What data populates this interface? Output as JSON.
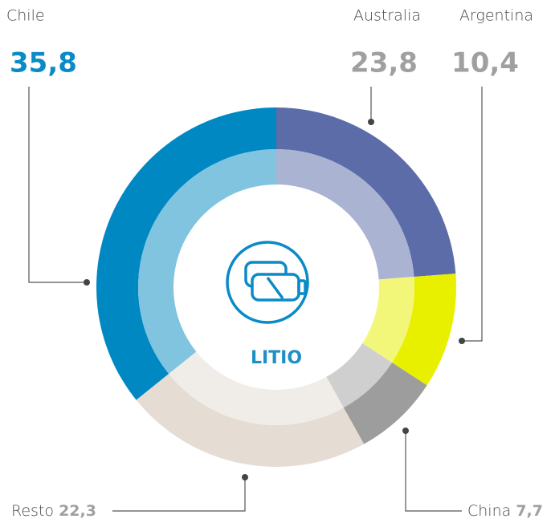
{
  "chart_data": {
    "type": "donut",
    "center_label": "LITIO",
    "categories": [
      "Australia",
      "Argentina",
      "China",
      "Resto",
      "Chile"
    ],
    "values": [
      23.8,
      10.4,
      7.7,
      22.3,
      35.8
    ],
    "value_labels": [
      "23,8",
      "10,4",
      "7,7",
      "22,3",
      "35,8"
    ],
    "colors": [
      "#5b6ca8",
      "#e8f000",
      "#9d9d9d",
      "#e5ddd3",
      "#0088c3"
    ],
    "inner_colors": [
      "#abb3d3",
      "#f2f77a",
      "#cfcfcf",
      "#f0ede8",
      "#80c4e0"
    ]
  }
}
